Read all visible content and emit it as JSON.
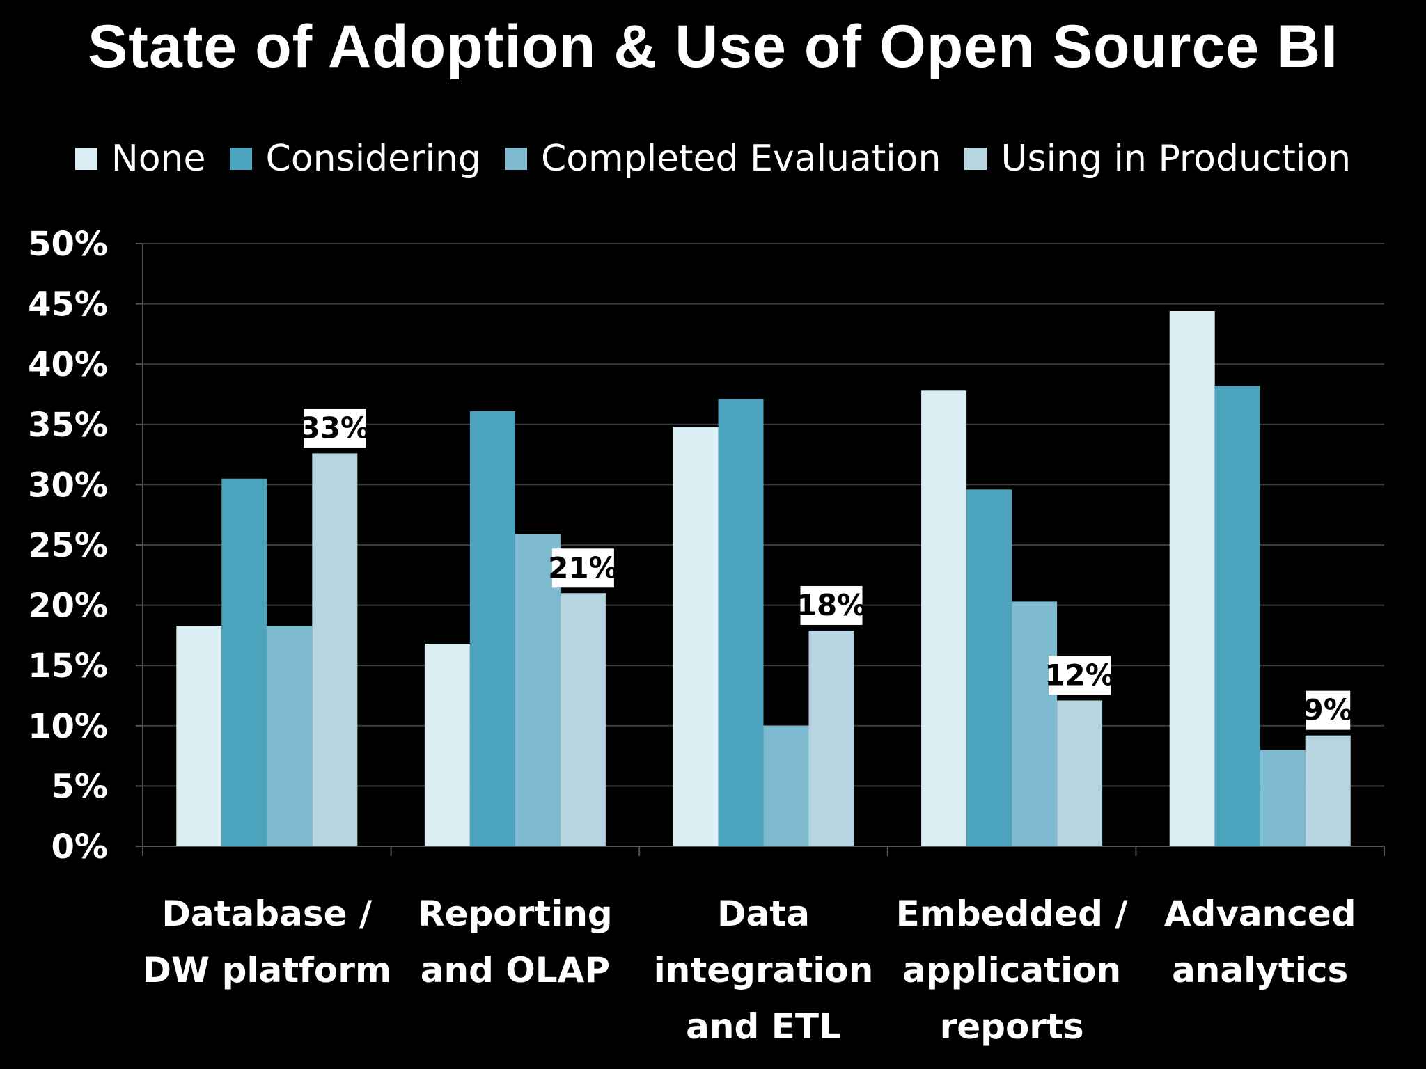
{
  "chart_data": {
    "type": "bar",
    "title": "State of Adoption & Use of Open Source BI",
    "categories": [
      [
        "Database /",
        "DW platform"
      ],
      [
        "Reporting",
        "and OLAP"
      ],
      [
        "Data",
        "integration",
        "and ETL"
      ],
      [
        "Embedded /",
        "application",
        "reports"
      ],
      [
        "Advanced",
        "analytics"
      ]
    ],
    "series": [
      {
        "name": "None",
        "color": "#dbeef3",
        "values": [
          18.3,
          16.8,
          34.8,
          37.8,
          44.4
        ]
      },
      {
        "name": "Considering",
        "color": "#4ba3bd",
        "values": [
          30.5,
          36.1,
          37.1,
          29.6,
          38.2
        ]
      },
      {
        "name": "Completed Evaluation",
        "color": "#7fbbd0",
        "values": [
          18.3,
          25.9,
          10.0,
          20.3,
          8.0
        ]
      },
      {
        "name": "Using in Production",
        "color": "#b7d5e1",
        "values": [
          32.6,
          21.0,
          17.9,
          12.1,
          9.2
        ]
      }
    ],
    "data_labels": {
      "series": "Using in Production",
      "texts": [
        "33%",
        "21%",
        "18%",
        "12%",
        "9%"
      ]
    },
    "y_ticks": [
      "0%",
      "5%",
      "10%",
      "15%",
      "20%",
      "25%",
      "30%",
      "35%",
      "40%",
      "45%",
      "50%"
    ],
    "ylim": [
      0,
      50
    ],
    "grid": true,
    "legend_position": "top",
    "background": "#000000"
  }
}
